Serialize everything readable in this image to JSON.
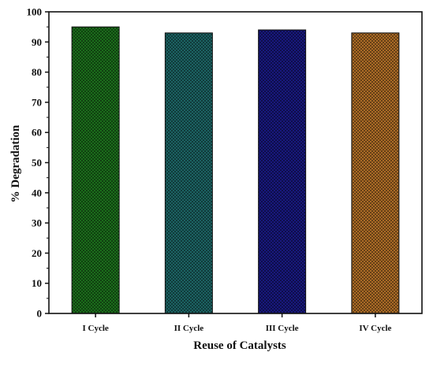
{
  "chart_data": {
    "type": "bar",
    "title": "",
    "xlabel": "Reuse of Catalysts",
    "ylabel": "% Degradation",
    "categories": [
      "I Cycle",
      "II Cycle",
      "III Cycle",
      "IV Cycle"
    ],
    "values": [
      95,
      93,
      94,
      93
    ],
    "ylim": [
      0,
      100
    ],
    "yticks": [
      "0",
      "10",
      "20",
      "30",
      "40",
      "50",
      "60",
      "70",
      "80",
      "90",
      "100"
    ],
    "grid": false,
    "legend": "none",
    "bar_colors": [
      "#1e7a1e",
      "#1f6e6e",
      "#1a1a8c",
      "#c0782a"
    ],
    "bar_pattern": "crosshatch"
  }
}
